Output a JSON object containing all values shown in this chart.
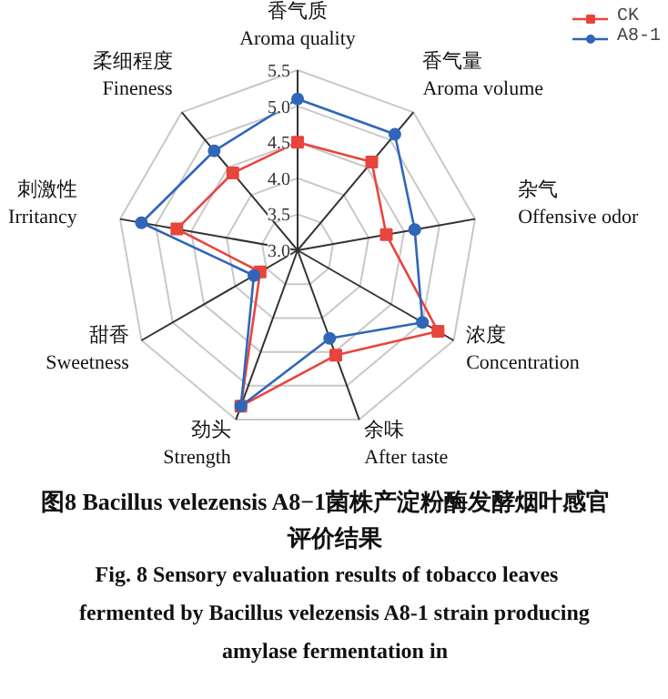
{
  "chart_data": {
    "type": "radar",
    "title": "图8    Bacillus velezensis A8−1菌株产淀粉酶发酵烟叶感官评价结果",
    "subtitle": "Fig. 8    Sensory evaluation results of tobacco leaves fermented by Bacillus velezensis A8-1 strain producing amylase fermentation in",
    "categories": [
      "香气质\nAroma quality",
      "香气量\nAroma volume",
      "杂气\nOffensive odor",
      "浓度\nConcentration",
      "余味\nAfter taste",
      "劲头\nStrength",
      "甜香\nSweetness",
      "刺激性\nIrritancy",
      "柔细程度\nFineness"
    ],
    "series": [
      {
        "name": "CK",
        "color": "#e8453c",
        "marker": "square",
        "values": [
          4.5,
          4.6,
          4.25,
          5.25,
          4.55,
          5.3,
          3.6,
          4.7,
          4.4
        ]
      },
      {
        "name": "A8-1",
        "color": "#2f66b8",
        "marker": "circle",
        "values": [
          5.1,
          5.1,
          4.65,
          5.0,
          4.3,
          5.3,
          3.7,
          5.2,
          4.8
        ]
      }
    ],
    "ylim": [
      3.0,
      5.5
    ],
    "yticks": [
      {
        "value": 3.0,
        "label": "3.0"
      },
      {
        "value": 3.5,
        "label": "3.5"
      },
      {
        "value": 4.0,
        "label": "4.0"
      },
      {
        "value": 4.5,
        "label": "4.5"
      },
      {
        "value": 5.0,
        "label": "5.0"
      },
      {
        "value": 5.5,
        "label": "5.5"
      }
    ],
    "legend": "top right",
    "grid": true
  }
}
